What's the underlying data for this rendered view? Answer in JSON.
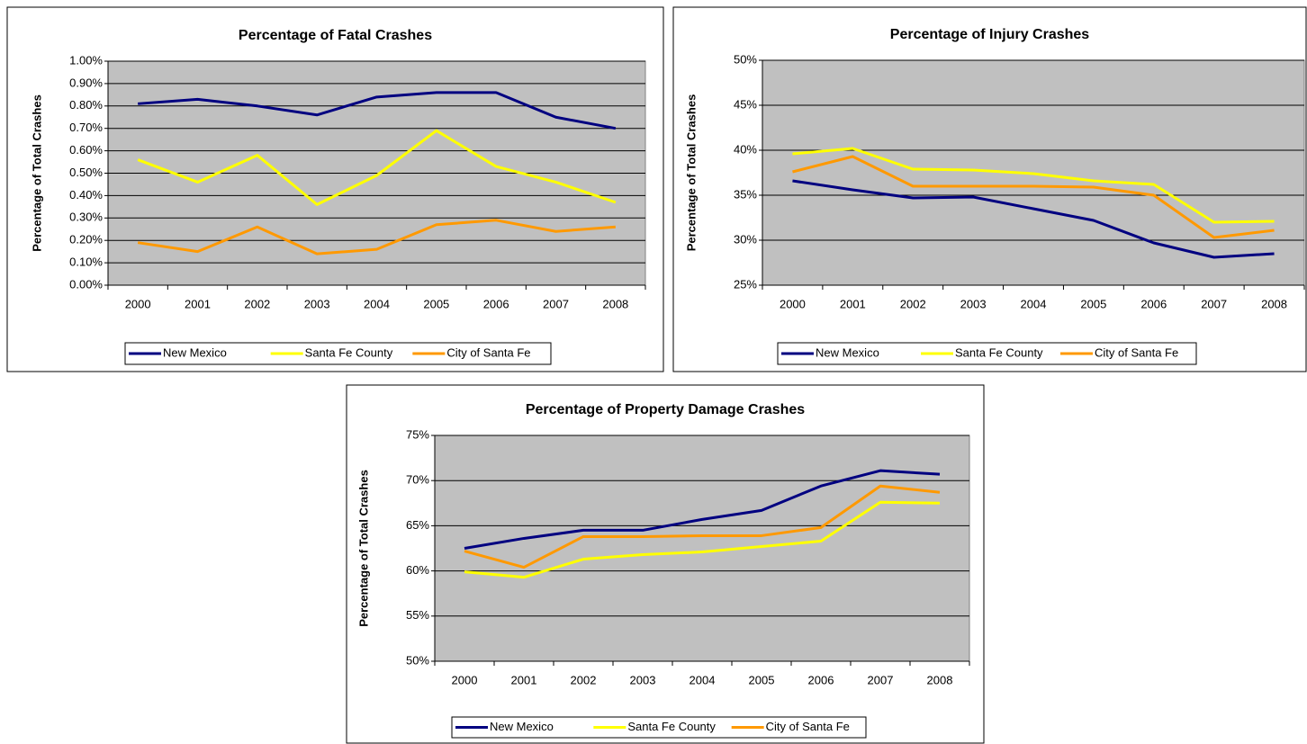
{
  "chart_data": [
    {
      "type": "line",
      "title": "Percentage of Fatal Crashes",
      "y_label": "Percentage of Total Crashes",
      "categories": [
        "2000",
        "2001",
        "2002",
        "2003",
        "2004",
        "2005",
        "2006",
        "2007",
        "2008"
      ],
      "series": [
        {
          "name": "New Mexico",
          "color": "#000080",
          "values": [
            0.81,
            0.83,
            0.8,
            0.76,
            0.84,
            0.86,
            0.86,
            0.75,
            0.7
          ]
        },
        {
          "name": "Santa Fe County",
          "color": "#ffff00",
          "values": [
            0.56,
            0.46,
            0.58,
            0.36,
            0.49,
            0.69,
            0.53,
            0.46,
            0.37
          ]
        },
        {
          "name": "City of Santa Fe",
          "color": "#ff9900",
          "values": [
            0.19,
            0.15,
            0.26,
            0.14,
            0.16,
            0.27,
            0.29,
            0.24,
            0.26
          ]
        }
      ],
      "ylim": [
        0,
        1
      ],
      "yticks": [
        {
          "value": 0,
          "label": "0.00%"
        },
        {
          "value": 0.1,
          "label": "0.10%"
        },
        {
          "value": 0.2,
          "label": "0.20%"
        },
        {
          "value": 0.3,
          "label": "0.30%"
        },
        {
          "value": 0.4,
          "label": "0.40%"
        },
        {
          "value": 0.5,
          "label": "0.50%"
        },
        {
          "value": 0.6,
          "label": "0.60%"
        },
        {
          "value": 0.7,
          "label": "0.70%"
        },
        {
          "value": 0.8,
          "label": "0.80%"
        },
        {
          "value": 0.9,
          "label": "0.90%"
        },
        {
          "value": 1,
          "label": "1.00%"
        }
      ],
      "grid": true,
      "legend": "bottom"
    },
    {
      "type": "line",
      "title": "Percentage of Injury Crashes",
      "y_label": "Percentage of Total Crashes",
      "categories": [
        "2000",
        "2001",
        "2002",
        "2003",
        "2004",
        "2005",
        "2006",
        "2007",
        "2008"
      ],
      "series": [
        {
          "name": "New Mexico",
          "color": "#000080",
          "values": [
            36.6,
            35.6,
            34.7,
            34.8,
            33.5,
            32.2,
            29.7,
            28.1,
            28.5
          ]
        },
        {
          "name": "Santa Fe County",
          "color": "#ffff00",
          "values": [
            39.6,
            40.2,
            37.9,
            37.8,
            37.4,
            36.6,
            36.2,
            32.0,
            32.1
          ]
        },
        {
          "name": "City of Santa Fe",
          "color": "#ff9900",
          "values": [
            37.6,
            39.3,
            36.0,
            36.0,
            36.0,
            35.9,
            35.0,
            30.3,
            31.1
          ]
        }
      ],
      "ylim": [
        25,
        50
      ],
      "yticks": [
        {
          "value": 25,
          "label": "25%"
        },
        {
          "value": 30,
          "label": "30%"
        },
        {
          "value": 35,
          "label": "35%"
        },
        {
          "value": 40,
          "label": "40%"
        },
        {
          "value": 45,
          "label": "45%"
        },
        {
          "value": 50,
          "label": "50%"
        }
      ],
      "grid": true,
      "legend": "bottom"
    },
    {
      "type": "line",
      "title": "Percentage of Property Damage Crashes",
      "y_label": "Percentage of Total Crashes",
      "categories": [
        "2000",
        "2001",
        "2002",
        "2003",
        "2004",
        "2005",
        "2006",
        "2007",
        "2008"
      ],
      "series": [
        {
          "name": "New Mexico",
          "color": "#000080",
          "values": [
            62.5,
            63.6,
            64.5,
            64.5,
            65.7,
            66.7,
            69.4,
            71.1,
            70.7
          ]
        },
        {
          "name": "Santa Fe County",
          "color": "#ffff00",
          "values": [
            59.9,
            59.3,
            61.3,
            61.8,
            62.1,
            62.7,
            63.3,
            67.6,
            67.5
          ]
        },
        {
          "name": "City of Santa Fe",
          "color": "#ff9900",
          "values": [
            62.2,
            60.4,
            63.8,
            63.8,
            63.9,
            63.9,
            64.8,
            69.4,
            68.7
          ]
        }
      ],
      "ylim": [
        50,
        75
      ],
      "yticks": [
        {
          "value": 50,
          "label": "50%"
        },
        {
          "value": 55,
          "label": "55%"
        },
        {
          "value": 60,
          "label": "60%"
        },
        {
          "value": 65,
          "label": "65%"
        },
        {
          "value": 70,
          "label": "70%"
        },
        {
          "value": 75,
          "label": "75%"
        }
      ],
      "grid": true,
      "legend": "bottom"
    }
  ]
}
